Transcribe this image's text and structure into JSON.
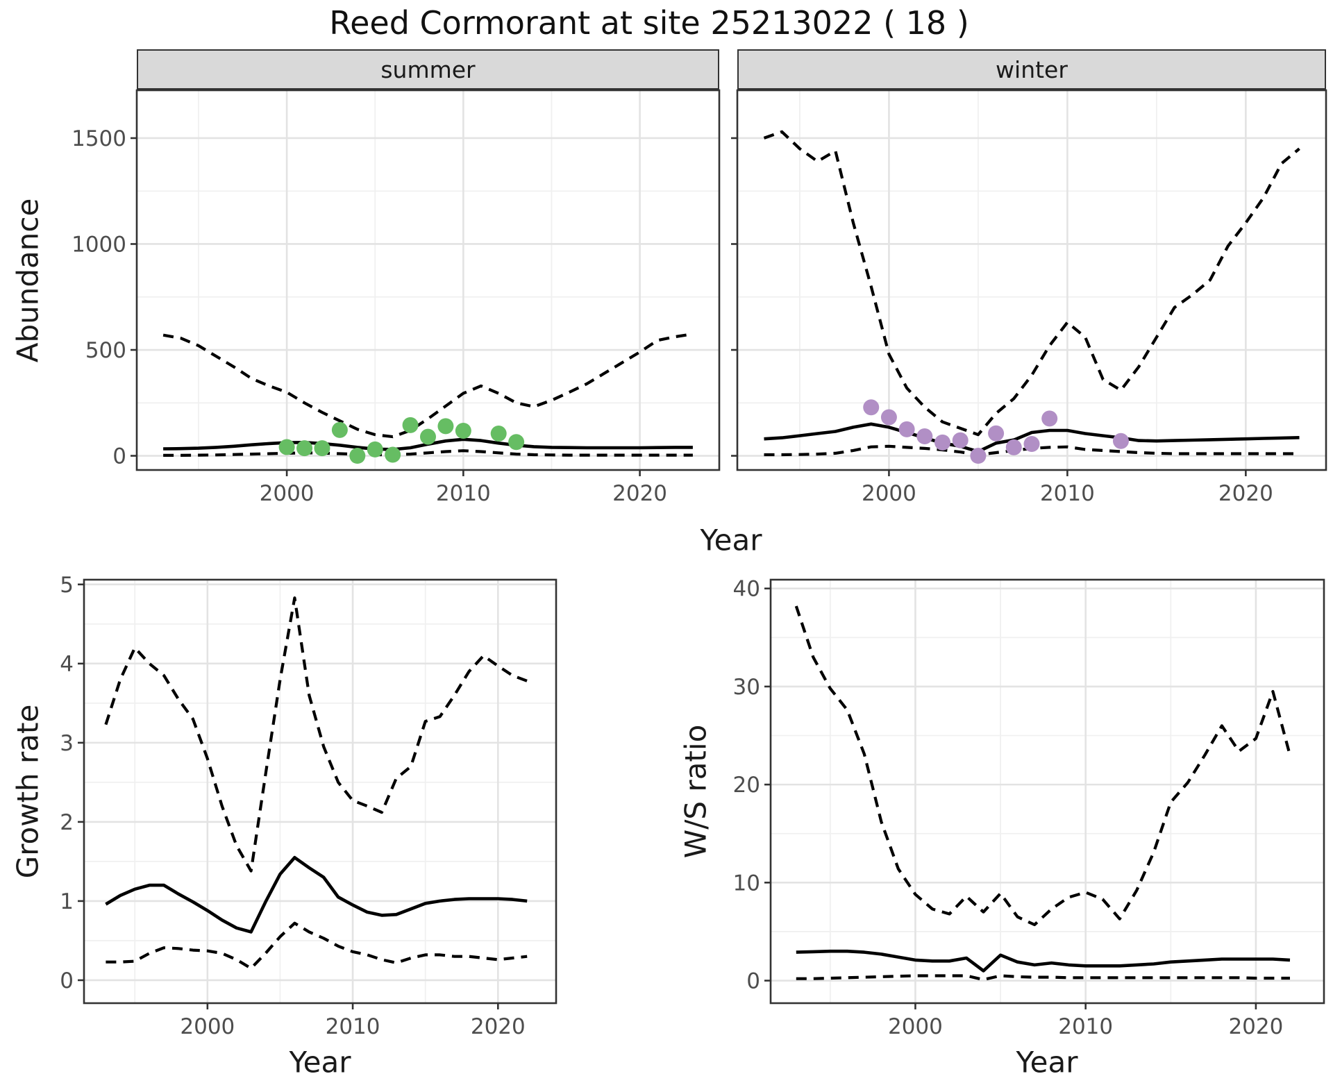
{
  "title": "Reed Cormorant at site 25213022 ( 18 )",
  "labels": {
    "x_axis": "Year",
    "abundance": "Abundance",
    "growth_rate": "Growth rate",
    "ws_ratio": "W/S ratio"
  },
  "colors": {
    "summer_points": "#66bd63",
    "winter_points": "#b18fc5",
    "line": "#000000",
    "strip_bg": "#d9d9d9",
    "grid_major": "#e3e3e3",
    "grid_minor": "#f0f0f0",
    "panel_border": "#333333",
    "tick_text": "#4d4d4d"
  },
  "chart_data": [
    {
      "id": "abundance-summer",
      "type": "line",
      "facet_label": "summer",
      "ylabel": "Abundance",
      "xlabel": "Year",
      "axes": {
        "xlim": [
          1991.5,
          2024.5
        ],
        "ylim": [
          -67,
          1726
        ],
        "xticks": [
          2000,
          2010,
          2020
        ],
        "xticks_minor": [
          1995,
          2005,
          2015
        ],
        "yticks": [
          0,
          500,
          1000,
          1500
        ],
        "yticks_minor": [
          250,
          750,
          1250
        ],
        "ytick_labels": true
      },
      "series": [
        {
          "name": "ci-upper",
          "style": "dashed",
          "x_start": 1993,
          "values": [
            570,
            555,
            520,
            470,
            420,
            365,
            330,
            300,
            250,
            205,
            165,
            125,
            100,
            90,
            120,
            175,
            235,
            295,
            330,
            295,
            250,
            232,
            262,
            300,
            340,
            390,
            440,
            490,
            545,
            562,
            575
          ]
        },
        {
          "name": "median",
          "style": "solid",
          "x_start": 1993,
          "values": [
            33,
            34,
            36,
            40,
            45,
            52,
            58,
            62,
            63,
            58,
            50,
            40,
            32,
            30,
            38,
            55,
            70,
            78,
            72,
            60,
            50,
            43,
            40,
            39,
            38,
            38,
            38,
            38,
            39,
            40,
            40
          ]
        },
        {
          "name": "ci-lower",
          "style": "dashed",
          "x_start": 1993,
          "values": [
            2,
            2,
            3,
            4,
            6,
            8,
            10,
            12,
            14,
            13,
            10,
            7,
            5,
            5,
            8,
            14,
            20,
            24,
            20,
            14,
            8,
            5,
            4,
            3,
            3,
            3,
            3,
            3,
            3,
            3,
            3
          ]
        },
        {
          "name": "observations",
          "style": "points",
          "color_key": "summer_points",
          "x": [
            2000,
            2001,
            2002,
            2003,
            2004,
            2005,
            2006,
            2007,
            2008,
            2009,
            2010,
            2012,
            2013
          ],
          "values": [
            41,
            36,
            36,
            122,
            0,
            30,
            5,
            145,
            90,
            140,
            118,
            105,
            65
          ]
        }
      ]
    },
    {
      "id": "abundance-winter",
      "type": "line",
      "facet_label": "winter",
      "ylabel": "Abundance",
      "xlabel": "Year",
      "axes": {
        "xlim": [
          1991.5,
          2024.5
        ],
        "ylim": [
          -67,
          1726
        ],
        "xticks": [
          2000,
          2010,
          2020
        ],
        "xticks_minor": [
          1995,
          2005,
          2015
        ],
        "yticks": [
          0,
          500,
          1000,
          1500
        ],
        "yticks_minor": [
          250,
          750,
          1250
        ],
        "ytick_labels": false
      },
      "series": [
        {
          "name": "ci-upper",
          "style": "dashed",
          "x_start": 1993,
          "values": [
            1500,
            1530,
            1450,
            1390,
            1440,
            1100,
            800,
            480,
            320,
            230,
            160,
            130,
            100,
            200,
            270,
            380,
            520,
            630,
            560,
            360,
            310,
            420,
            560,
            700,
            760,
            830,
            990,
            1100,
            1220,
            1380,
            1450
          ]
        },
        {
          "name": "median",
          "style": "solid",
          "x_start": 1993,
          "values": [
            80,
            85,
            95,
            105,
            115,
            135,
            150,
            135,
            110,
            85,
            60,
            45,
            20,
            60,
            75,
            110,
            120,
            120,
            105,
            95,
            85,
            72,
            70,
            72,
            74,
            76,
            78,
            80,
            82,
            84,
            86
          ]
        },
        {
          "name": "ci-lower",
          "style": "dashed",
          "x_start": 1993,
          "values": [
            5,
            5,
            6,
            8,
            12,
            25,
            42,
            45,
            40,
            35,
            28,
            18,
            5,
            15,
            25,
            35,
            40,
            42,
            30,
            25,
            20,
            15,
            12,
            10,
            10,
            10,
            10,
            10,
            10,
            10,
            10
          ]
        },
        {
          "name": "observations",
          "style": "points",
          "color_key": "winter_points",
          "x": [
            1999,
            2000,
            2001,
            2002,
            2003,
            2004,
            2005,
            2006,
            2007,
            2008,
            2009,
            2013
          ],
          "values": [
            229,
            182,
            125,
            92,
            63,
            73,
            0,
            106,
            40,
            56,
            176,
            70
          ]
        }
      ]
    },
    {
      "id": "growth-rate",
      "type": "line",
      "facet_label": "",
      "ylabel": "Growth rate",
      "xlabel": "Year",
      "axes": {
        "xlim": [
          1991.5,
          2024
        ],
        "ylim": [
          -0.29,
          5.06
        ],
        "xticks": [
          2000,
          2010,
          2020
        ],
        "xticks_minor": [
          1995,
          2005,
          2015
        ],
        "yticks": [
          0,
          1,
          2,
          3,
          4,
          5
        ],
        "yticks_minor": [
          0.5,
          1.5,
          2.5,
          3.5,
          4.5
        ],
        "ytick_labels": true
      },
      "series": [
        {
          "name": "ci-upper",
          "style": "dashed",
          "x_start": 1993,
          "values": [
            3.23,
            3.8,
            4.2,
            4.0,
            3.85,
            3.55,
            3.3,
            2.8,
            2.2,
            1.7,
            1.38,
            2.6,
            3.8,
            4.83,
            3.6,
            2.95,
            2.5,
            2.27,
            2.2,
            2.12,
            2.55,
            2.7,
            3.27,
            3.33,
            3.6,
            3.9,
            4.1,
            3.97,
            3.85,
            3.78
          ]
        },
        {
          "name": "median",
          "style": "solid",
          "x_start": 1993,
          "values": [
            0.96,
            1.07,
            1.15,
            1.2,
            1.2,
            1.09,
            0.99,
            0.88,
            0.76,
            0.66,
            0.61,
            0.99,
            1.34,
            1.55,
            1.42,
            1.3,
            1.05,
            0.95,
            0.86,
            0.82,
            0.83,
            0.9,
            0.97,
            1.0,
            1.02,
            1.03,
            1.03,
            1.03,
            1.02,
            1.0
          ]
        },
        {
          "name": "ci-lower",
          "style": "dashed",
          "x_start": 1993,
          "values": [
            0.23,
            0.23,
            0.24,
            0.34,
            0.41,
            0.4,
            0.38,
            0.37,
            0.34,
            0.26,
            0.15,
            0.34,
            0.55,
            0.72,
            0.61,
            0.53,
            0.43,
            0.36,
            0.32,
            0.26,
            0.22,
            0.28,
            0.32,
            0.32,
            0.3,
            0.3,
            0.28,
            0.26,
            0.28,
            0.3
          ]
        }
      ]
    },
    {
      "id": "ws-ratio",
      "type": "line",
      "facet_label": "",
      "ylabel": "W/S ratio",
      "xlabel": "Year",
      "axes": {
        "xlim": [
          1991.5,
          2024
        ],
        "ylim": [
          -2.3,
          40.9
        ],
        "xticks": [
          2000,
          2010,
          2020
        ],
        "xticks_minor": [
          1995,
          2005,
          2015
        ],
        "yticks": [
          0,
          10,
          20,
          30,
          40
        ],
        "yticks_minor": [
          5,
          15,
          25,
          35
        ],
        "ytick_labels": true
      },
      "series": [
        {
          "name": "ci-upper",
          "style": "dashed",
          "x_start": 1993,
          "values": [
            38.2,
            33.0,
            29.8,
            27.6,
            23.1,
            16.2,
            11.4,
            8.8,
            7.3,
            6.8,
            8.6,
            7.0,
            8.9,
            6.5,
            5.7,
            7.3,
            8.5,
            9.0,
            8.3,
            6.3,
            9.2,
            13.1,
            18.2,
            20.2,
            23.0,
            26.0,
            23.4,
            24.7,
            29.5,
            23.0
          ]
        },
        {
          "name": "median",
          "style": "solid",
          "x_start": 1993,
          "values": [
            2.9,
            2.95,
            3.0,
            3.0,
            2.9,
            2.7,
            2.4,
            2.1,
            2.0,
            2.0,
            2.3,
            1.0,
            2.6,
            1.9,
            1.6,
            1.8,
            1.6,
            1.5,
            1.5,
            1.5,
            1.6,
            1.7,
            1.9,
            2.0,
            2.1,
            2.2,
            2.2,
            2.2,
            2.2,
            2.1
          ]
        },
        {
          "name": "ci-lower",
          "style": "dashed",
          "x_start": 1993,
          "values": [
            0.2,
            0.2,
            0.25,
            0.3,
            0.35,
            0.4,
            0.45,
            0.5,
            0.5,
            0.5,
            0.5,
            0.1,
            0.5,
            0.4,
            0.35,
            0.35,
            0.3,
            0.3,
            0.3,
            0.3,
            0.3,
            0.3,
            0.3,
            0.3,
            0.3,
            0.3,
            0.3,
            0.25,
            0.25,
            0.25
          ]
        }
      ]
    }
  ]
}
